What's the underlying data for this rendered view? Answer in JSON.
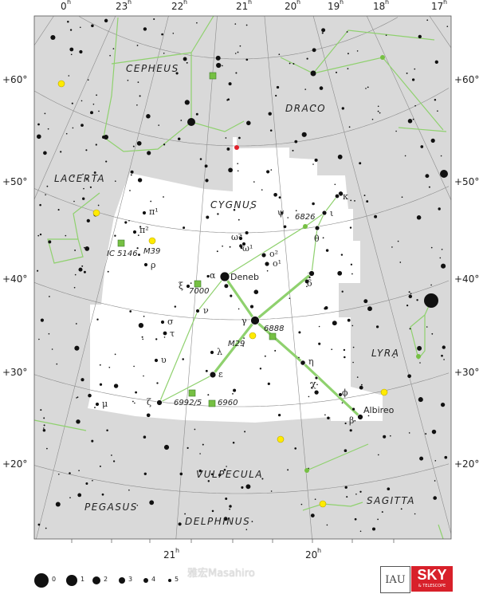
{
  "colors": {
    "sky_background": "#d9d9d9",
    "constellation_highlight": "#ffffff",
    "grid": "#8c8c8c",
    "stick_figure": "#8fd16e",
    "cluster": "#ffeb00",
    "nebula": "#76c043",
    "red_star": "#e0202a",
    "logo_red": "#d8202a"
  },
  "grid": {
    "hour_unit": "h",
    "ra_top": [
      "0",
      "23",
      "22",
      "21",
      "20",
      "19",
      "18",
      "17"
    ],
    "ra_bottom": [
      "21",
      "20"
    ],
    "dec_left": [
      "+60°",
      "+50°",
      "+40°",
      "+30°",
      "+20°"
    ],
    "dec_right": [
      "+60°",
      "+50°",
      "+40°",
      "+30°",
      "+20°"
    ]
  },
  "constellations": {
    "cepheus": "CEPHEUS",
    "draco": "DRACO",
    "lacerta": "LACERTA",
    "cygnus": "CYGNUS",
    "lyra": "LYRA",
    "vulpecula": "VULPECULA",
    "pegasus": "PEGASUS",
    "delphinus": "DELPHINUS",
    "sagitta": "SAGITTA"
  },
  "stars": {
    "deneb": "Deneb",
    "alpha": "α",
    "gamma": "γ",
    "delta": "δ",
    "epsilon": "ε",
    "zeta": "ζ",
    "eta": "η",
    "beta": "β",
    "albireo": "Albireo",
    "theta": "θ",
    "iota": "ι",
    "kappa": "κ",
    "psi": "ψ",
    "chi": "χ",
    "phi": "ϕ",
    "lambda": "λ",
    "nu": "ν",
    "xi": "ξ",
    "rho": "ρ",
    "sigma": "σ",
    "tau": "τ",
    "upsilon": "υ",
    "mu": "μ",
    "pi1": "π¹",
    "pi2": "π²",
    "omega1": "ω¹",
    "omega2": "ω²",
    "o1": "o¹",
    "o2": "o²"
  },
  "deep_sky": {
    "ic5146": "IC 5146",
    "m39": "M39",
    "ngc7000": "7000",
    "ngc6888": "6888",
    "m29": "M29",
    "ngc6826": "6826",
    "ngc6992": "6992/5",
    "ngc6960": "6960"
  },
  "legend": {
    "magnitudes": [
      "0",
      "1",
      "2",
      "3",
      "4",
      "5"
    ]
  },
  "watermark": "雅宏Masahiro",
  "logos": {
    "iau": "IAU",
    "sky": "SKY",
    "sky_sub": "& TELESCOPE"
  }
}
